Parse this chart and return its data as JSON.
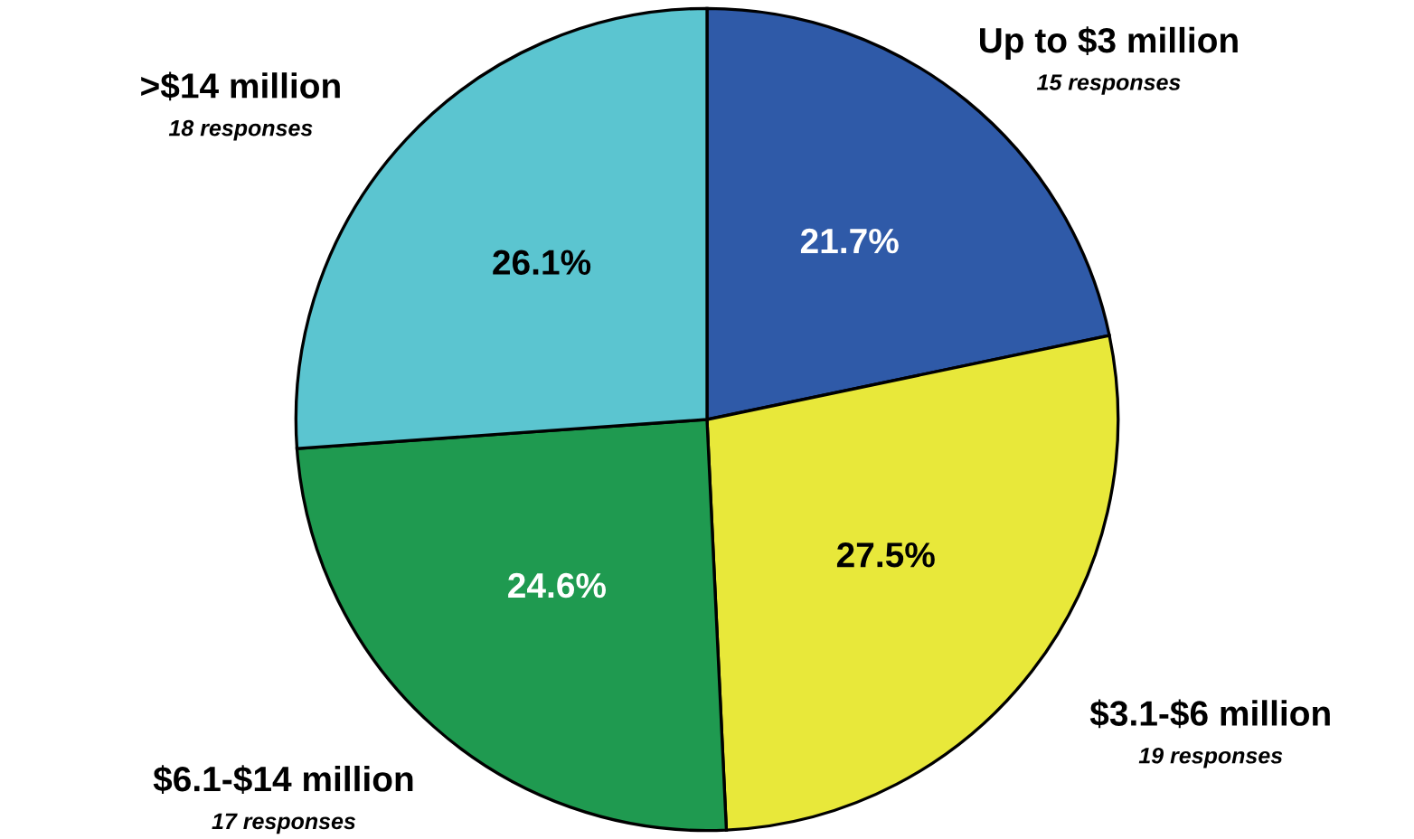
{
  "chart_data": {
    "type": "pie",
    "categories": [
      "Up to $3 million",
      "$3.1-$6 million",
      "$6.1-$14 million",
      ">$14 million"
    ],
    "values": [
      21.7,
      27.5,
      24.6,
      26.1
    ],
    "colors": [
      "#2f5aa8",
      "#e8e83a",
      "#1f9a50",
      "#5bc5d0"
    ],
    "value_labels": [
      "21.7%",
      "27.5%",
      "24.6%",
      "26.1%"
    ],
    "annotations": [
      "15 responses",
      "19 responses",
      "17 responses",
      "18 responses"
    ],
    "legend": false
  }
}
